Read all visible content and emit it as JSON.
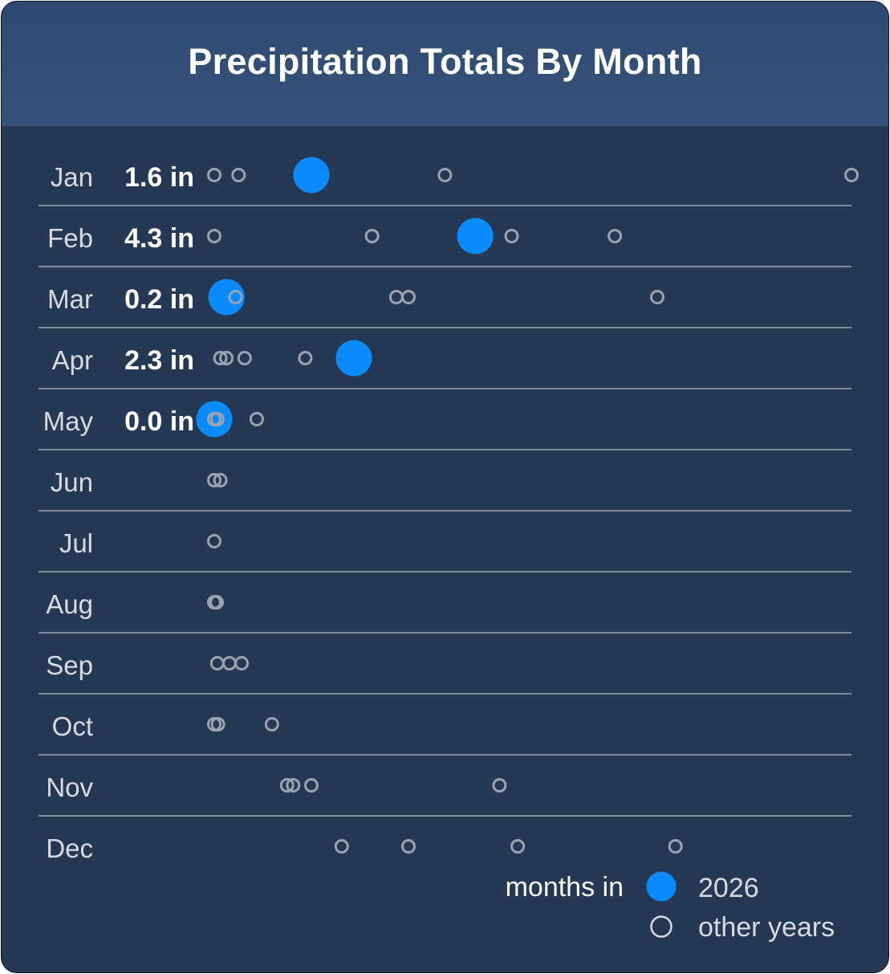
{
  "title": "Precipitation Totals By Month",
  "colors": {
    "highlight": "#0a8cff",
    "other": "#9aa4b1",
    "divider": "#d2d7de",
    "month_label": "#d6dbe2",
    "value_label": "#ffffff",
    "legend_text": "#ffffff",
    "legend_year_text": "#d6dbe2"
  },
  "legend": {
    "prefix": "months in",
    "current_label": "2026",
    "other_label": "other years"
  },
  "chart_data": {
    "type": "scatter",
    "title": "Precipitation Totals By Month",
    "unit": "in",
    "x_range": [
      0,
      10.5
    ],
    "current_year": "2026",
    "months": [
      {
        "label": "Jan",
        "current_label": "1.6 in",
        "current": 1.6,
        "others": [
          0.0,
          0.4,
          3.8,
          10.5
        ]
      },
      {
        "label": "Feb",
        "current_label": "4.3 in",
        "current": 4.3,
        "others": [
          0.0,
          2.6,
          4.9,
          6.6
        ]
      },
      {
        "label": "Mar",
        "current_label": "0.2 in",
        "current": 0.2,
        "others": [
          0.35,
          3.0,
          3.2,
          7.3
        ]
      },
      {
        "label": "Apr",
        "current_label": "2.3 in",
        "current": 2.3,
        "others": [
          0.1,
          0.2,
          0.5,
          1.5
        ]
      },
      {
        "label": "May",
        "current_label": "0.0 in",
        "current": 0.0,
        "others": [
          0.0,
          0.05,
          0.7
        ]
      },
      {
        "label": "Jun",
        "others": [
          0.0,
          0.1
        ]
      },
      {
        "label": "Jul",
        "others": [
          0.0
        ]
      },
      {
        "label": "Aug",
        "others": [
          0.0,
          0.04
        ]
      },
      {
        "label": "Sep",
        "others": [
          0.05,
          0.25,
          0.45
        ]
      },
      {
        "label": "Oct",
        "others": [
          0.0,
          0.06,
          0.95
        ]
      },
      {
        "label": "Nov",
        "others": [
          1.2,
          1.3,
          1.6,
          4.7
        ]
      },
      {
        "label": "Dec",
        "others": [
          2.1,
          3.2,
          5.0,
          7.6
        ]
      }
    ]
  }
}
